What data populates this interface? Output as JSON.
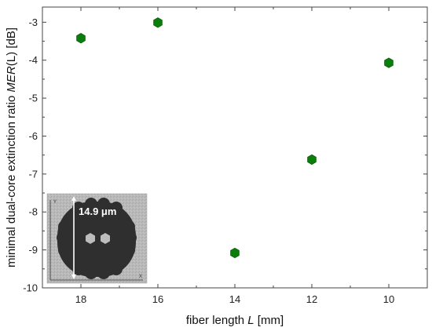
{
  "chart_data": {
    "type": "scatter",
    "xlabel": "fiber length",
    "xlabel_var": "L",
    "xlabel_unit": "[mm]",
    "ylabel": "minimal dual-core extinction ratio",
    "ylabel_var": "MER",
    "ylabel_arg": "(L)",
    "ylabel_unit": "[dB]",
    "xlim": [
      19,
      9
    ],
    "ylim": [
      -10,
      -2.6
    ],
    "xticks": [
      18,
      16,
      14,
      12,
      10
    ],
    "yticks": [
      -3,
      -4,
      -5,
      -6,
      -7,
      -8,
      -9,
      -10
    ],
    "x_reversed": true,
    "grid": false,
    "series": [
      {
        "marker": "hexagon",
        "color": "#0b7d0b",
        "points": [
          {
            "x": 18,
            "y": -3.42
          },
          {
            "x": 16,
            "y": -3.01
          },
          {
            "x": 14,
            "y": -9.08
          },
          {
            "x": 12,
            "y": -6.62
          },
          {
            "x": 10,
            "y": -4.07
          }
        ]
      }
    ]
  },
  "inset": {
    "label": "14.9 μm",
    "axis_y": "Y",
    "axis_x": "X"
  }
}
